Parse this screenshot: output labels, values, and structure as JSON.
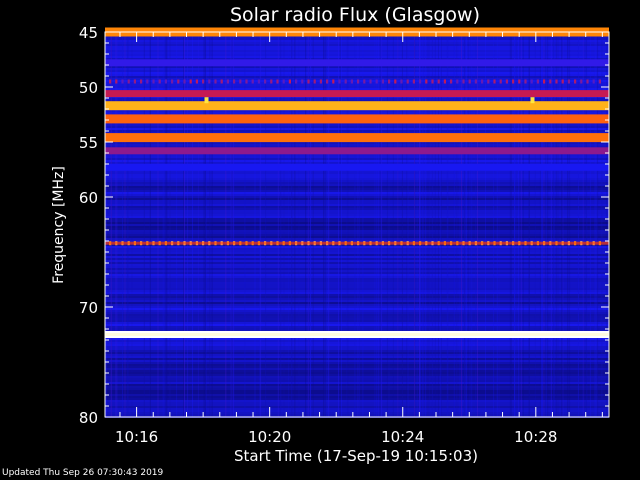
{
  "chart_data": {
    "type": "heatmap",
    "title": "Solar radio Flux (Glasgow)",
    "xlabel": "Start Time (17-Sep-19 10:15:03)",
    "ylabel": "Frequency [MHz]",
    "y_ticks": [
      45,
      50,
      55,
      60,
      70,
      80
    ],
    "x_ticks": [
      "10:16",
      "10:20",
      "10:24",
      "10:28"
    ],
    "x_tick_minutes": [
      16,
      20,
      24,
      28
    ],
    "xlim_minutes": [
      15.05,
      30.2
    ],
    "ylim": [
      45,
      80
    ],
    "colormap": [
      "#000000",
      "#0a0a7a",
      "#1a1aff",
      "#ff1a1a",
      "#ffaa00",
      "#ffffff"
    ],
    "bands": [
      {
        "freq": 45.0,
        "intensity": 0.75
      },
      {
        "freq": 47.8,
        "intensity": 0.42
      },
      {
        "freq": 49.5,
        "intensity": 0.45,
        "dotted": true
      },
      {
        "freq": 50.6,
        "intensity": 0.55
      },
      {
        "freq": 51.7,
        "intensity": 0.82
      },
      {
        "freq": 52.9,
        "intensity": 0.7
      },
      {
        "freq": 54.6,
        "intensity": 0.72
      },
      {
        "freq": 55.8,
        "intensity": 0.5
      },
      {
        "freq": 57.3,
        "intensity": 0.38
      },
      {
        "freq": 64.2,
        "intensity": 0.8,
        "dotted": true
      },
      {
        "freq": 72.5,
        "intensity": 1.0
      }
    ],
    "spikes": [
      {
        "minute": 18.1,
        "freq": 51.2
      },
      {
        "minute": 27.9,
        "freq": 51.2
      }
    ],
    "footer": "Updated Thu Sep 26 07:30:43 2019"
  }
}
